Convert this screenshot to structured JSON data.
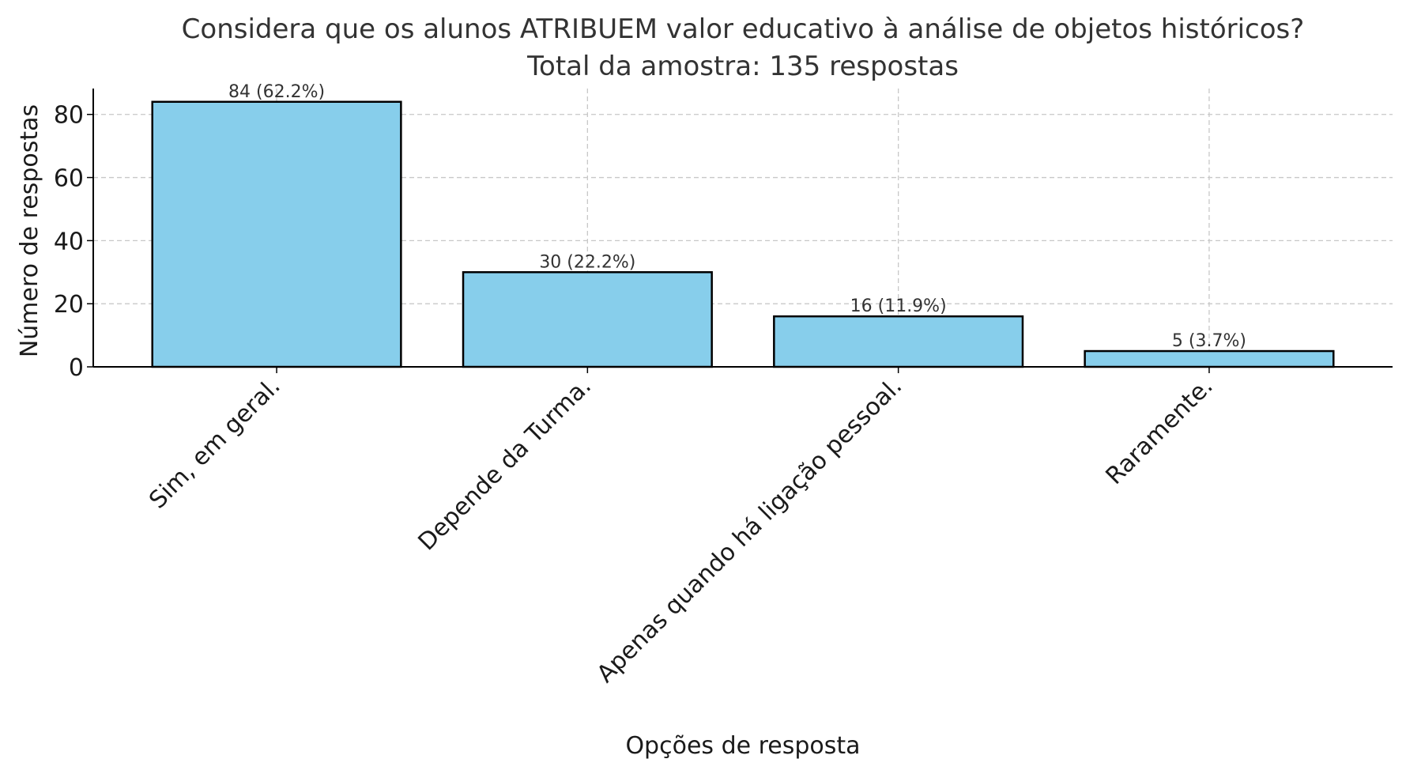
{
  "chart_data": {
    "type": "bar",
    "title_line1": "Considera que os alunos ATRIBUEM valor educativo à análise de objetos históricos?",
    "title_line2": "Total da amostra: 135 respostas",
    "xlabel": "Opções de resposta",
    "ylabel": "Número de respostas",
    "categories": [
      "Sim, em geral.",
      "Depende da Turma.",
      "Apenas quando há ligação pessoal.",
      "Raramente."
    ],
    "values": [
      84,
      30,
      16,
      5
    ],
    "data_labels": [
      "84 (62.2%)",
      "30 (22.2%)",
      "16 (11.9%)",
      "5 (3.7%)"
    ],
    "ylim": [
      0,
      88.2
    ],
    "yticks": [
      0,
      20,
      40,
      60,
      80
    ],
    "grid": true,
    "colors": {
      "bar_fill": "#87CEEB",
      "bar_edge": "#000000",
      "grid": "#c8c8c8",
      "text": "#333333"
    }
  }
}
